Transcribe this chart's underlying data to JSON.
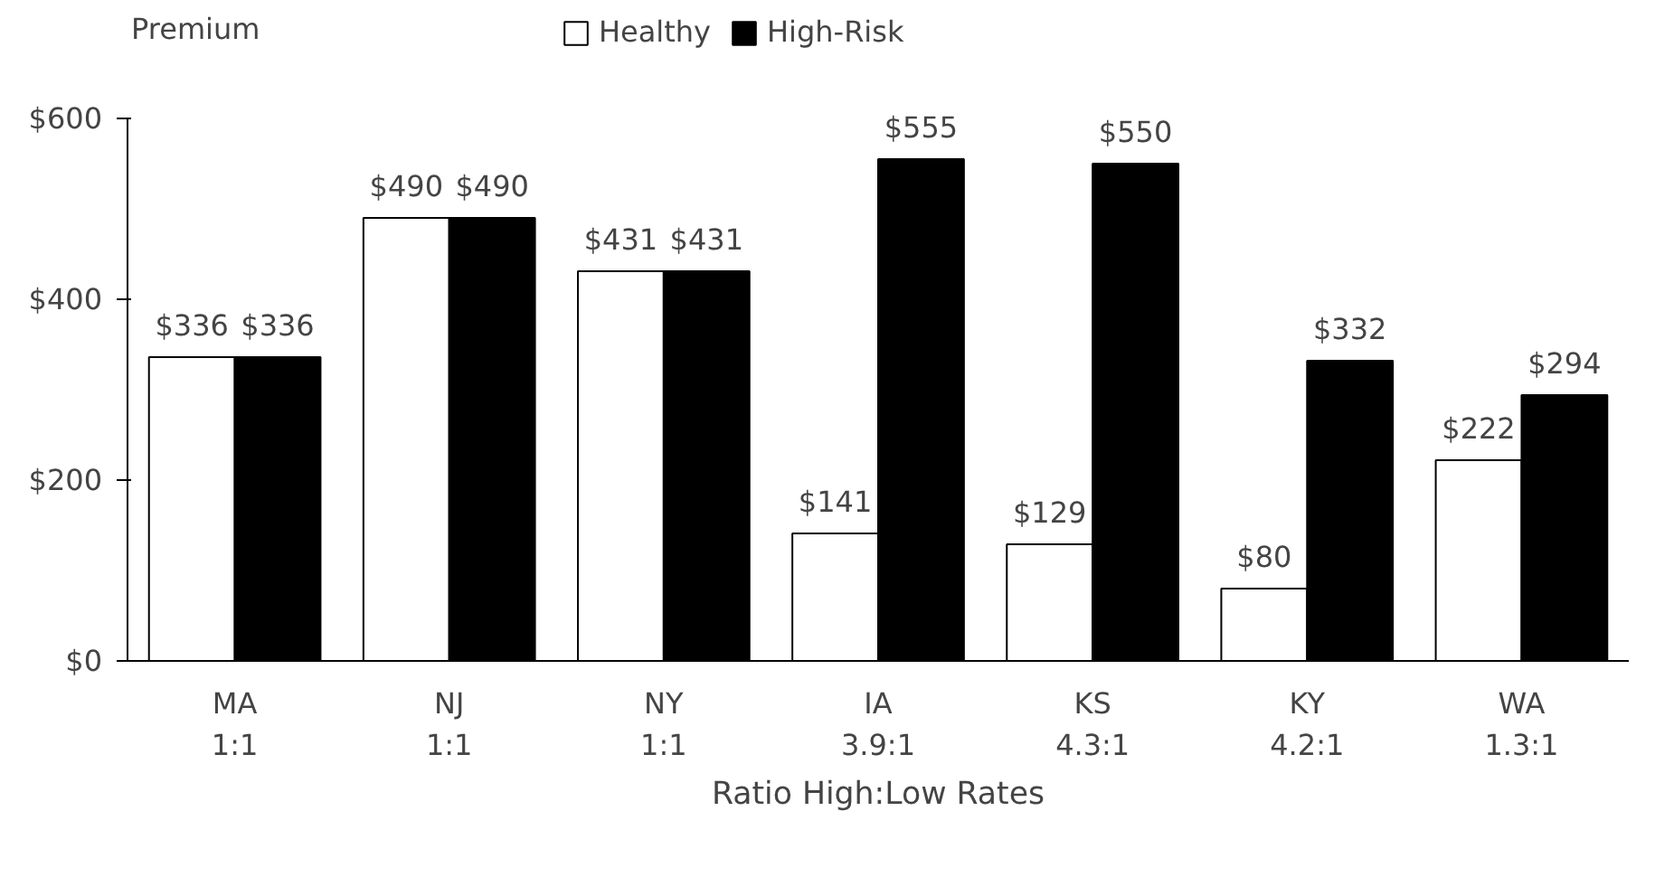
{
  "chart_data": {
    "type": "bar",
    "ylabel": "Premium",
    "xlabel": "Ratio High:Low Rates",
    "categories": [
      "MA\n1:1",
      "NJ\n1:1",
      "NY\n1:1",
      "IA\n3.9:1",
      "KS\n4.3:1",
      "KY\n4.2:1",
      "WA\n1.3:1"
    ],
    "series": [
      {
        "name": "Healthy",
        "color": "#ffffff",
        "values": [
          336,
          490,
          431,
          141,
          129,
          80,
          222
        ],
        "value_labels": [
          "$336",
          "$490",
          "$431",
          "$141",
          "$129",
          "$80",
          "$222"
        ]
      },
      {
        "name": "High-Risk",
        "color": "#000000",
        "values": [
          336,
          490,
          431,
          555,
          550,
          332,
          294
        ],
        "value_labels": [
          "$336",
          "$490",
          "$431",
          "$555",
          "$550",
          "$332",
          "$294"
        ]
      }
    ],
    "ylim": [
      0,
      600
    ],
    "yticks": [
      {
        "value": 0,
        "label": "$0"
      },
      {
        "value": 200,
        "label": "$200"
      },
      {
        "value": 400,
        "label": "$400"
      },
      {
        "value": 600,
        "label": "$600"
      }
    ],
    "grid": false,
    "legend": "top"
  }
}
